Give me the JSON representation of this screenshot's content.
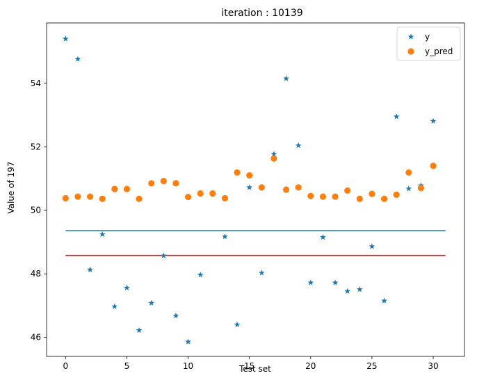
{
  "chart_data": {
    "type": "scatter",
    "title": "iteration : 10139",
    "xlabel": "Test set",
    "ylabel": "Value of 197",
    "xlim": [
      -1.55,
      32.55
    ],
    "ylim": [
      45.4,
      55.9
    ],
    "xticks": [
      0,
      5,
      10,
      15,
      20,
      25,
      30
    ],
    "yticks": [
      46,
      48,
      50,
      52,
      54
    ],
    "grid": false,
    "legend_position": "top-right",
    "series": [
      {
        "name": "y",
        "marker": "star",
        "color": "#1f77b4",
        "x": [
          0,
          1,
          2,
          3,
          4,
          5,
          6,
          7,
          8,
          9,
          10,
          11,
          12,
          13,
          14,
          15,
          16,
          17,
          18,
          19,
          20,
          21,
          22,
          23,
          24,
          25,
          26,
          27,
          28,
          29,
          30
        ],
        "values": [
          55.4,
          54.76,
          48.13,
          49.24,
          46.97,
          47.56,
          46.22,
          47.08,
          48.57,
          46.68,
          45.86,
          47.97,
          50.52,
          49.17,
          46.4,
          50.72,
          48.03,
          51.77,
          54.15,
          52.04,
          47.72,
          49.15,
          47.72,
          47.45,
          47.51,
          48.86,
          47.15,
          52.95,
          50.68,
          50.78,
          52.81
        ]
      },
      {
        "name": "y_pred",
        "marker": "circle",
        "color": "#ff7f0e",
        "x": [
          0,
          1,
          2,
          3,
          4,
          5,
          6,
          7,
          8,
          9,
          10,
          11,
          12,
          13,
          14,
          15,
          16,
          17,
          18,
          19,
          20,
          21,
          22,
          23,
          24,
          25,
          26,
          27,
          28,
          29,
          30
        ],
        "values": [
          50.38,
          50.43,
          50.43,
          50.36,
          50.67,
          50.67,
          50.36,
          50.85,
          50.92,
          50.85,
          50.42,
          50.53,
          50.53,
          50.38,
          51.19,
          51.1,
          50.72,
          51.63,
          50.65,
          50.72,
          50.45,
          50.43,
          50.43,
          50.62,
          50.36,
          50.52,
          50.36,
          50.49,
          51.19,
          50.7,
          51.4
        ]
      }
    ],
    "lines": [
      {
        "color": "#1f77b4",
        "y": 49.36,
        "x": [
          0,
          31
        ]
      },
      {
        "color": "#ff0000",
        "y": 48.58,
        "x": [
          0,
          31
        ]
      }
    ]
  }
}
